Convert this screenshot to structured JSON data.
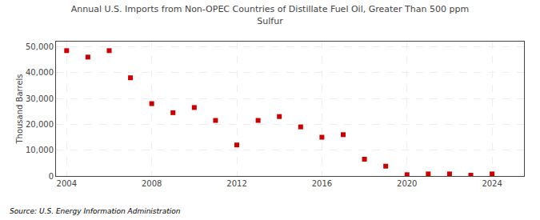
{
  "chart_data": {
    "type": "scatter",
    "title": "Annual U.S. Imports from Non-OPEC Countries of Distillate Fuel Oil, Greater Than 500 ppm\nSulfur",
    "ylabel": "Thousand Barrels",
    "annotations": [
      "Source: U.S. Energy Information Administration"
    ],
    "color": "#CC0000",
    "marker": "square",
    "grid": true,
    "xlim": [
      2003.5,
      2025.5
    ],
    "xticks": [
      2004,
      2008,
      2012,
      2016,
      2020,
      2024
    ],
    "ylim": [
      0,
      52000
    ],
    "yticks": [
      0,
      {
        "value": 10000,
        "label": "10,000"
      },
      {
        "value": 20000,
        "label": "20,000"
      },
      {
        "value": 30000,
        "label": "30,000"
      },
      {
        "value": 40000,
        "label": "40,000"
      },
      {
        "value": 50000,
        "label": "50,000"
      }
    ],
    "x": [
      2004,
      2005,
      2006,
      2007,
      2008,
      2009,
      2010,
      2011,
      2012,
      2013,
      2014,
      2015,
      2016,
      2017,
      2018,
      2019,
      2020,
      2021,
      2022,
      2023,
      2024
    ],
    "values": [
      48500,
      46000,
      48500,
      38000,
      28000,
      24500,
      26500,
      21500,
      12000,
      21500,
      23000,
      19000,
      15000,
      16000,
      6500,
      3800,
      500,
      800,
      800,
      300,
      800
    ]
  }
}
